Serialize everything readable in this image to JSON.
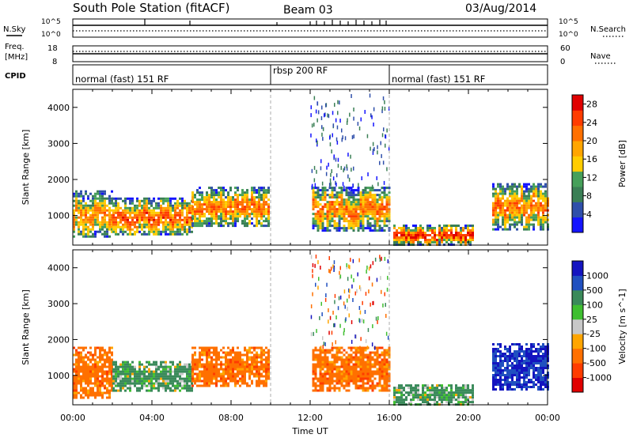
{
  "header": {
    "station": "South Pole Station (fitACF)",
    "beam": "Beam 03",
    "date": "03/Aug/2014"
  },
  "noise_panel": {
    "left_label": "N.Sky",
    "right_label": "N.Search",
    "left_ticks": [
      "10^5",
      "10^0"
    ],
    "right_ticks": [
      "10^5",
      "10^0"
    ]
  },
  "freq_panel": {
    "left_label_1": "Freq.",
    "left_label_2": "[MHz]",
    "right_label": "Nave",
    "left_ticks": [
      "18",
      "8"
    ],
    "right_ticks": [
      "60",
      "0"
    ]
  },
  "cpid": {
    "label": "CPID",
    "segments": [
      {
        "name": "normal (fast) 151 RF",
        "start_h": 0,
        "end_h": 10
      },
      {
        "name": "rbsp 200 RF",
        "start_h": 10,
        "end_h": 16
      },
      {
        "name": "normal (fast) 151 RF",
        "start_h": 16,
        "end_h": 24
      }
    ]
  },
  "colors": {
    "power": [
      "#1414ff",
      "#2f4faa",
      "#3a7f55",
      "#46a05a",
      "#ffcc00",
      "#ffa500",
      "#ff7000",
      "#ff3c00",
      "#e00000"
    ],
    "velocity": [
      "#e00000",
      "#ff3c00",
      "#ff7000",
      "#ffa500",
      "#c8c8c8",
      "#3fbf30",
      "#3a8a5a",
      "#2050c0",
      "#1414c0"
    ]
  },
  "chart_data": [
    {
      "type": "heatmap",
      "title": "South Pole Station (fitACF)  Beam 03  03/Aug/2014",
      "xlabel": "Time UT",
      "ylabel": "Slant Range [km]",
      "xlim": [
        "00:00",
        "24:00"
      ],
      "ylim": [
        180,
        4500
      ],
      "x_ticks": [
        "00:00",
        "04:00",
        "08:00",
        "12:00",
        "16:00",
        "20:00",
        "00:00"
      ],
      "y_ticks": [
        1000,
        2000,
        3000,
        4000
      ],
      "colorbar": {
        "label": "Power [dB]",
        "ticks": [
          4,
          8,
          12,
          16,
          20,
          24,
          28
        ],
        "range": [
          0,
          30
        ]
      },
      "regions": [
        {
          "t0": 0.0,
          "t1": 2.0,
          "r0": 400,
          "r1": 1700,
          "peak_db": 22
        },
        {
          "t0": 2.0,
          "t1": 6.0,
          "r0": 450,
          "r1": 1500,
          "peak_db": 26
        },
        {
          "t0": 6.0,
          "t1": 9.9,
          "r0": 700,
          "r1": 1800,
          "peak_db": 24
        },
        {
          "t0": 12.1,
          "t1": 16.0,
          "r0": 600,
          "r1": 1800,
          "peak_db": 24
        },
        {
          "t0": 16.2,
          "t1": 20.2,
          "r0": 200,
          "r1": 750,
          "peak_db": 30
        },
        {
          "t0": 21.2,
          "t1": 24.0,
          "r0": 600,
          "r1": 1900,
          "peak_db": 24
        }
      ]
    },
    {
      "type": "heatmap",
      "xlabel": "Time UT",
      "ylabel": "Slant Range [km]",
      "xlim": [
        "00:00",
        "24:00"
      ],
      "ylim": [
        180,
        4500
      ],
      "x_ticks": [
        "00:00",
        "04:00",
        "08:00",
        "12:00",
        "16:00",
        "20:00",
        "00:00"
      ],
      "y_ticks": [
        1000,
        2000,
        3000,
        4000
      ],
      "colorbar": {
        "label": "Velocity [m s^-1]",
        "ticks": [
          -1000,
          -500,
          -100,
          -25,
          25,
          100,
          500,
          1000
        ]
      },
      "regions": [
        {
          "t0": 0.0,
          "t1": 2.0,
          "r0": 400,
          "r1": 1800,
          "dominant_velocity": -300
        },
        {
          "t0": 2.0,
          "t1": 6.0,
          "r0": 600,
          "r1": 1400,
          "dominant_velocity": 200
        },
        {
          "t0": 6.0,
          "t1": 9.9,
          "r0": 700,
          "r1": 1800,
          "dominant_velocity": -300
        },
        {
          "t0": 12.1,
          "t1": 16.0,
          "r0": 600,
          "r1": 1800,
          "dominant_velocity": -300
        },
        {
          "t0": 16.2,
          "t1": 20.2,
          "r0": 200,
          "r1": 750,
          "dominant_velocity": 200
        },
        {
          "t0": 21.2,
          "t1": 24.0,
          "r0": 600,
          "r1": 1900,
          "dominant_velocity": 1000
        }
      ]
    }
  ]
}
